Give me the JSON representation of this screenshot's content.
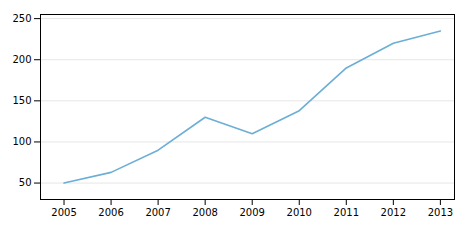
{
  "chart_data": {
    "type": "line",
    "x": [
      2005,
      2006,
      2007,
      2008,
      2009,
      2010,
      2011,
      2012,
      2013
    ],
    "values": [
      50,
      63,
      90,
      130,
      110,
      138,
      190,
      220,
      235
    ],
    "color": "#6baed6",
    "xlim": [
      2004.5,
      2013.3
    ],
    "xticks": [
      2005,
      2006,
      2007,
      2008,
      2009,
      2010,
      2011,
      2012,
      2013
    ],
    "ylim": [
      30,
      255
    ],
    "yticks": [
      50,
      100,
      150,
      200,
      250
    ],
    "grid": true
  }
}
